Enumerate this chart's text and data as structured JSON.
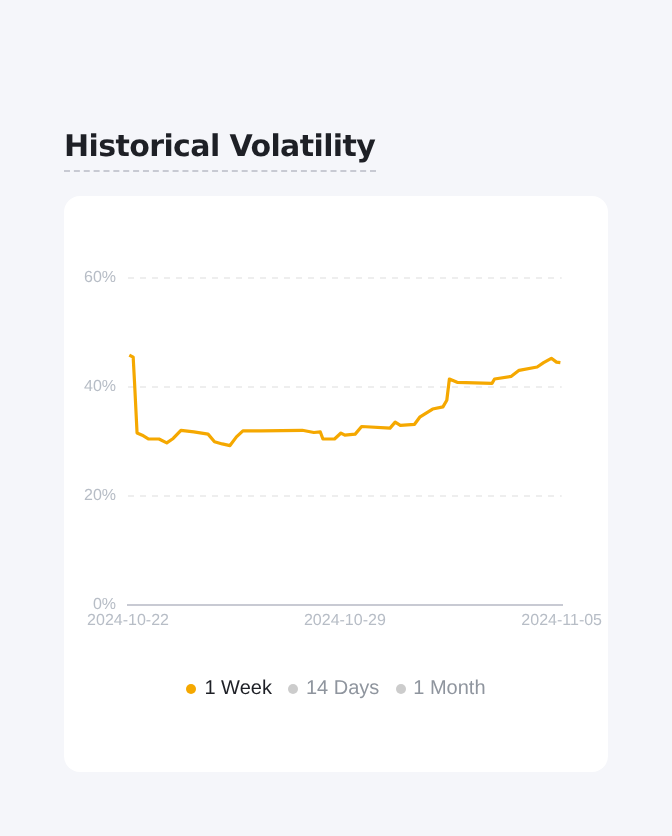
{
  "chart_data": {
    "type": "line",
    "title": "Historical Volatility",
    "x": [
      "2024-10-22T01:00",
      "2024-10-22T04:00",
      "2024-10-22T05:00",
      "2024-10-22T07:00",
      "2024-10-22T11:00",
      "2024-10-22T16:00",
      "2024-10-23T00:00",
      "2024-10-23T06:00",
      "2024-10-23T11:00",
      "2024-10-23T17:00",
      "2024-10-24T03:00",
      "2024-10-24T14:00",
      "2024-10-24T19:00",
      "2024-10-25T01:00",
      "2024-10-25T07:00",
      "2024-10-25T12:00",
      "2024-10-25T17:00",
      "2024-10-26T07:00",
      "2024-10-27T15:00",
      "2024-10-28T00:00",
      "2024-10-28T05:00",
      "2024-10-28T07:00",
      "2024-10-28T16:00",
      "2024-10-28T21:00",
      "2024-10-29T00:00",
      "2024-10-29T08:00",
      "2024-10-29T13:00",
      "2024-10-30T11:00",
      "2024-10-30T15:00",
      "2024-10-30T19:00",
      "2024-10-31T06:00",
      "2024-10-31T10:00",
      "2024-10-31T20:00",
      "2024-11-01T04:00",
      "2024-11-01T07:00",
      "2024-11-01T09:00",
      "2024-11-01T15:00",
      "2024-11-02T18:00",
      "2024-11-02T20:00",
      "2024-11-03T09:00",
      "2024-11-03T15:00",
      "2024-11-04T05:00",
      "2024-11-04T10:00",
      "2024-11-04T16:00",
      "2024-11-04T20:00",
      "2024-11-04T23:00"
    ],
    "series": [
      {
        "name": "1 Week",
        "color": "#f5a800",
        "values": [
          45.8,
          45.4,
          41,
          31.5,
          31.1,
          30.4,
          30.4,
          29.7,
          30.5,
          32,
          31.7,
          31.3,
          29.9,
          29.5,
          29.2,
          30.8,
          31.9,
          31.9,
          32,
          31.6,
          31.7,
          30.4,
          30.4,
          31.5,
          31.1,
          31.3,
          32.7,
          32.4,
          33.5,
          32.9,
          33.1,
          34.4,
          35.9,
          36.3,
          37.5,
          41.4,
          40.8,
          40.6,
          41.4,
          41.9,
          43,
          43.6,
          44.4,
          45.2,
          44.5,
          44.4
        ]
      },
      {
        "name": "14 Days",
        "color": "#cccccc",
        "values": [
          null,
          null,
          null,
          null,
          null,
          null,
          null,
          null,
          null,
          null,
          null,
          null,
          null,
          null,
          null,
          null,
          null,
          null,
          null,
          null,
          null,
          null,
          null,
          null,
          null,
          null,
          null,
          null,
          null,
          null,
          null,
          null,
          null,
          null,
          null,
          null,
          null,
          null,
          null,
          null,
          null,
          null,
          null,
          null,
          null,
          null
        ]
      },
      {
        "name": "1 Month",
        "color": "#cccccc",
        "values": [
          null,
          null,
          null,
          null,
          null,
          null,
          null,
          null,
          null,
          null,
          null,
          null,
          null,
          null,
          null,
          null,
          null,
          null,
          null,
          null,
          null,
          null,
          null,
          null,
          null,
          null,
          null,
          null,
          null,
          null,
          null,
          null,
          null,
          null,
          null,
          null,
          null,
          null,
          null,
          null,
          null,
          null,
          null,
          null,
          null,
          null
        ]
      }
    ],
    "xlim": [
      "2024-10-22",
      "2024-11-05"
    ],
    "xticks": [
      "2024-10-22",
      "2024-10-29",
      "2024-11-05"
    ],
    "ylim": [
      0,
      60
    ],
    "yticks": [
      {
        "value": 0,
        "label": "0%"
      },
      {
        "value": 20,
        "label": "20%"
      },
      {
        "value": 40,
        "label": "40%"
      },
      {
        "value": 60,
        "label": "60%"
      }
    ],
    "grid": "y",
    "legend": "bottom",
    "marker": "none",
    "line_style": "solid"
  }
}
